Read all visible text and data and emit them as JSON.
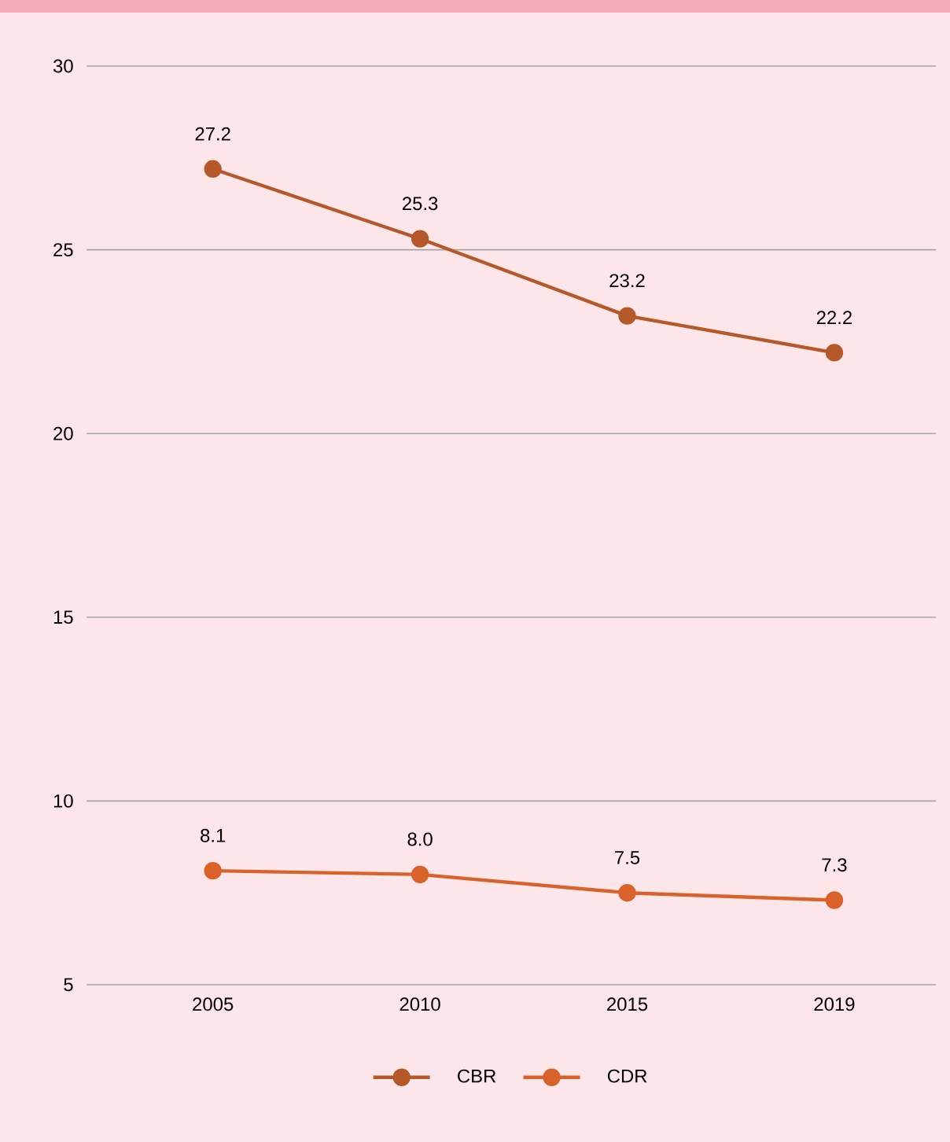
{
  "chart_data": {
    "type": "line",
    "categories": [
      "2005",
      "2010",
      "2015",
      "2019"
    ],
    "series": [
      {
        "name": "CBR",
        "color": "#b5582a",
        "values": [
          27.2,
          25.3,
          23.2,
          22.2
        ],
        "value_labels": [
          "27.2",
          "25.3",
          "23.2",
          "22.2"
        ]
      },
      {
        "name": "CDR",
        "color": "#d9622b",
        "values": [
          8.1,
          8.0,
          7.5,
          7.3
        ],
        "value_labels": [
          "8.1",
          "8.0",
          "7.5",
          "7.3"
        ]
      }
    ],
    "ylim": [
      5,
      30
    ],
    "yticks": [
      5,
      10,
      15,
      20,
      25,
      30
    ],
    "grid": "y",
    "legend": "bottom",
    "marker": "circle",
    "line_style": "solid"
  }
}
